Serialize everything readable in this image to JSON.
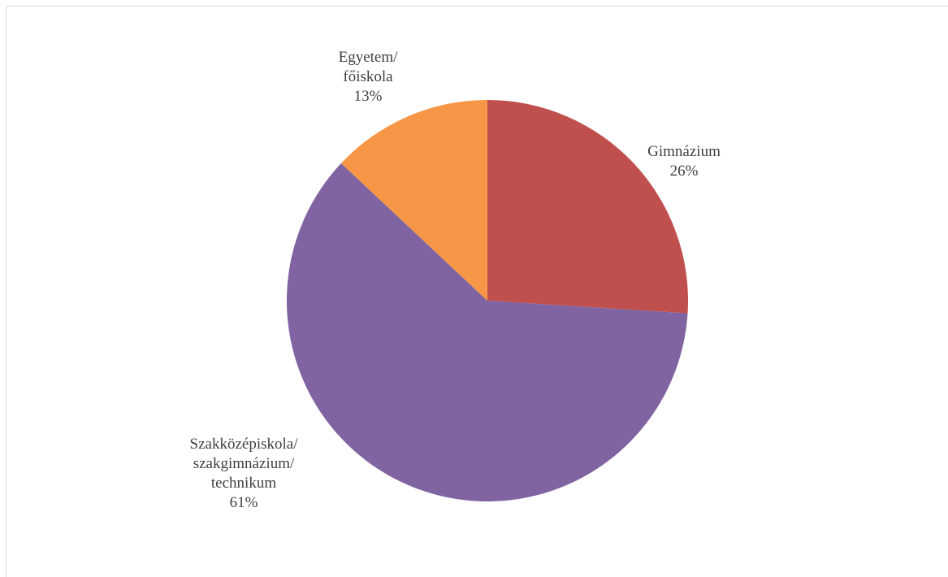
{
  "chart_data": {
    "type": "pie",
    "title": "",
    "categories": [
      "Gimnázium",
      "Szakközépiskola/ szakgimnázium/ technikum",
      "Egyetem/ főiskola"
    ],
    "values": [
      26,
      61,
      13
    ],
    "value_labels": [
      "26%",
      "61%",
      "13%"
    ],
    "label_lines": [
      [
        "Gimnázium"
      ],
      [
        "Szakközépiskola/",
        "szakgimnázium/",
        "technikum"
      ],
      [
        "Egyetem/",
        "főiskola"
      ]
    ],
    "colors": [
      "#c0504d",
      "#8064a2",
      "#f79646"
    ],
    "start_angle_deg": 0,
    "direction": "clockwise",
    "legend": "none",
    "data_labels": "outside"
  }
}
